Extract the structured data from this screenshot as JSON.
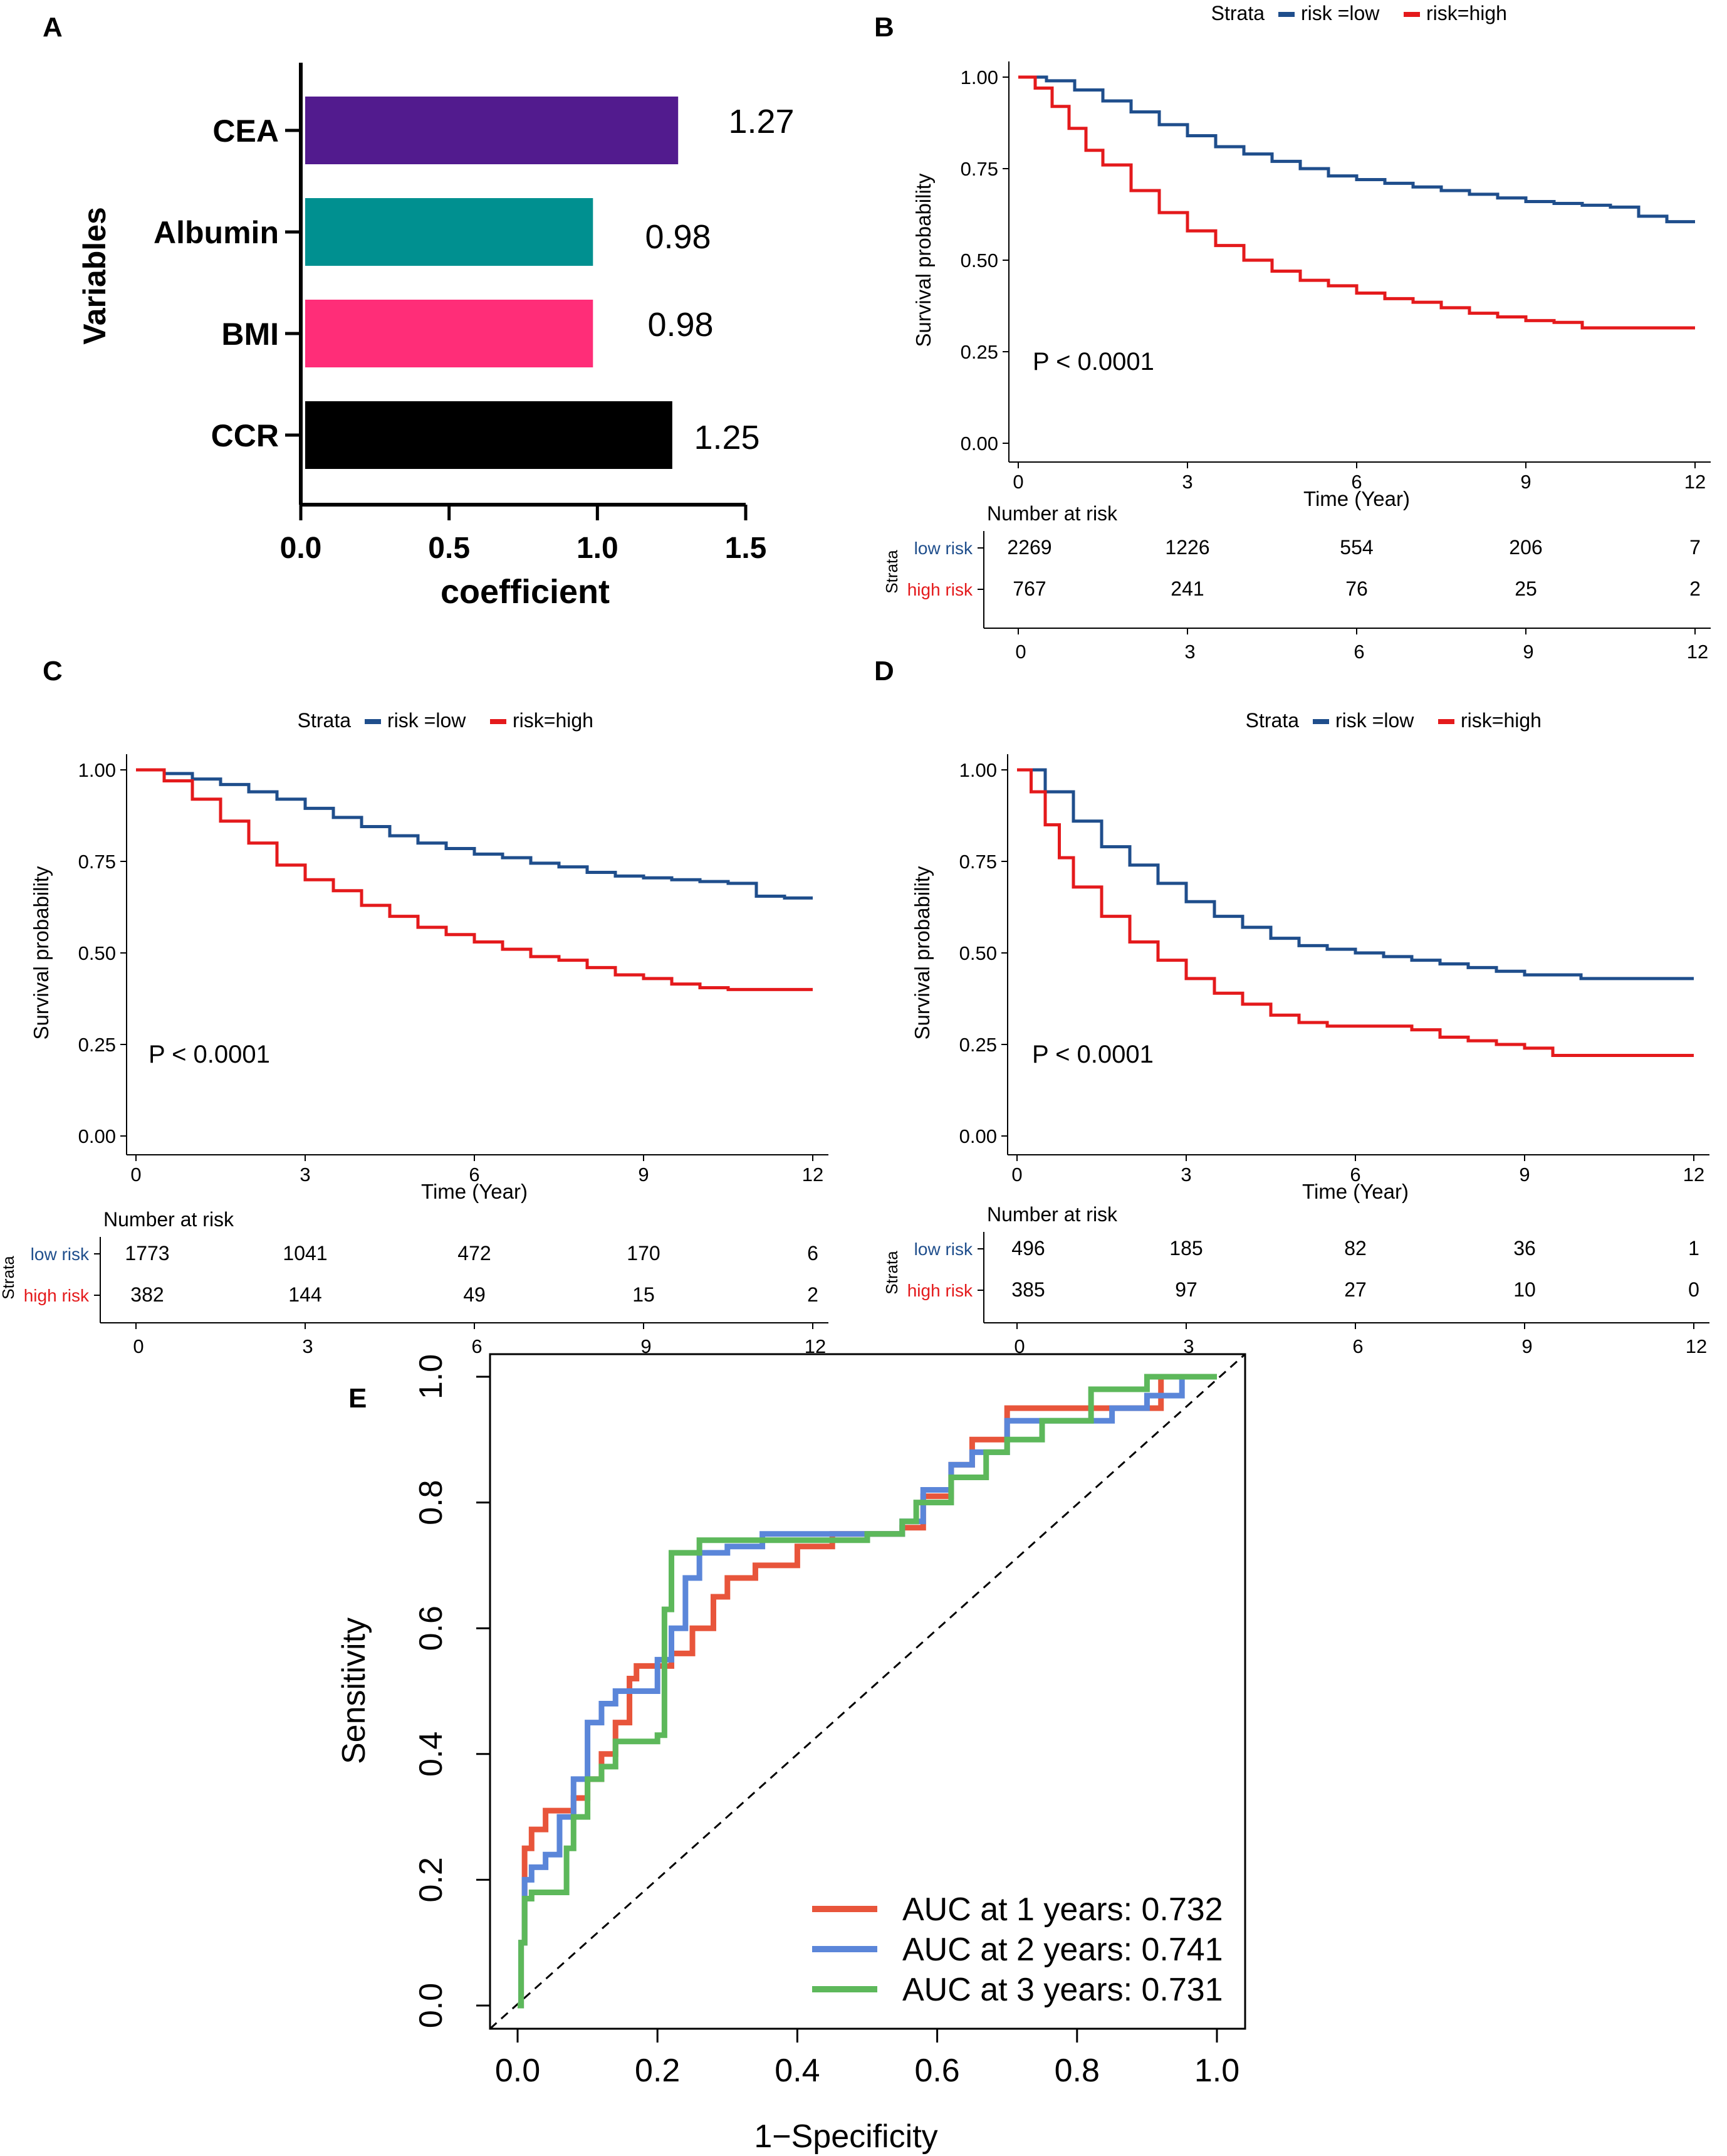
{
  "colors": {
    "low": "#1F4E8C",
    "high": "#E41A1C",
    "roc1": "#E8553B",
    "roc2": "#5B86D9",
    "roc3": "#5DB85B",
    "bar_cea": "#521B8E",
    "bar_albumin": "#009090",
    "bar_bmi": "#FF2D78",
    "bar_ccr": "#000000"
  },
  "chart_data": [
    {
      "panel": "A",
      "type": "bar",
      "orientation": "horizontal",
      "categories": [
        "CEA",
        "Albumin",
        "BMI",
        "CCR"
      ],
      "values": [
        1.27,
        0.98,
        0.98,
        1.25
      ],
      "value_labels": [
        "1.27",
        "0.98",
        "0.98",
        "1.25"
      ],
      "xlabel": "coefficient",
      "ylabel": "Variables",
      "xlim": [
        0,
        1.5
      ],
      "xticks": [
        "0.0",
        "0.5",
        "1.0",
        "1.5"
      ]
    },
    {
      "panel": "B",
      "type": "line",
      "legend_title": "Strata",
      "legend": [
        "risk =low",
        "risk=high"
      ],
      "xlabel": "Time (Year)",
      "ylabel": "Survival probability",
      "xlim": [
        0,
        12
      ],
      "ylim": [
        0,
        1
      ],
      "xticks": [
        "0",
        "3",
        "6",
        "9",
        "12"
      ],
      "yticks": [
        "0.00",
        "0.25",
        "0.50",
        "0.75",
        "1.00"
      ],
      "pvalue": "P < 0.0001",
      "series": [
        {
          "name": "risk =low",
          "x": [
            0,
            0.5,
            1,
            1.5,
            2,
            2.5,
            3,
            3.5,
            4,
            4.5,
            5,
            5.5,
            6,
            6.5,
            7,
            7.5,
            8,
            8.5,
            9,
            9.5,
            10,
            10.5,
            11,
            11.5,
            12
          ],
          "y": [
            1.0,
            0.99,
            0.965,
            0.935,
            0.905,
            0.87,
            0.84,
            0.81,
            0.79,
            0.77,
            0.75,
            0.73,
            0.72,
            0.71,
            0.7,
            0.69,
            0.68,
            0.67,
            0.66,
            0.655,
            0.65,
            0.645,
            0.62,
            0.605,
            0.605
          ]
        },
        {
          "name": "risk=high",
          "x": [
            0,
            0.3,
            0.6,
            0.9,
            1.2,
            1.5,
            2,
            2.5,
            3,
            3.5,
            4,
            4.5,
            5,
            5.5,
            6,
            6.5,
            7,
            7.5,
            8,
            8.5,
            9,
            9.5,
            10,
            10.5,
            11,
            11.5,
            12
          ],
          "y": [
            1.0,
            0.97,
            0.92,
            0.86,
            0.8,
            0.76,
            0.69,
            0.63,
            0.58,
            0.54,
            0.5,
            0.47,
            0.445,
            0.43,
            0.41,
            0.395,
            0.385,
            0.37,
            0.355,
            0.345,
            0.335,
            0.33,
            0.315,
            0.315,
            0.315,
            0.315,
            0.315
          ]
        }
      ],
      "risk_table": {
        "title": "Number at risk",
        "strata_label": "Strata",
        "rows": [
          {
            "label": "low risk",
            "counts": [
              "2269",
              "1226",
              "554",
              "206",
              "7"
            ]
          },
          {
            "label": "high risk",
            "counts": [
              "767",
              "241",
              "76",
              "25",
              "2"
            ]
          }
        ],
        "xticks": [
          "0",
          "3",
          "6",
          "9",
          "12"
        ]
      }
    },
    {
      "panel": "C",
      "type": "line",
      "legend_title": "Strata",
      "legend": [
        "risk =low",
        "risk=high"
      ],
      "xlabel": "Time (Year)",
      "ylabel": "Survival probability",
      "xlim": [
        0,
        12
      ],
      "ylim": [
        0,
        1
      ],
      "xticks": [
        "0",
        "3",
        "6",
        "9",
        "12"
      ],
      "yticks": [
        "0.00",
        "0.25",
        "0.50",
        "0.75",
        "1.00"
      ],
      "pvalue": "P < 0.0001",
      "series": [
        {
          "name": "risk =low",
          "x": [
            0,
            0.5,
            1,
            1.5,
            2,
            2.5,
            3,
            3.5,
            4,
            4.5,
            5,
            5.5,
            6,
            6.5,
            7,
            7.5,
            8,
            8.5,
            9,
            9.5,
            10,
            10.5,
            11,
            11.5,
            12
          ],
          "y": [
            1.0,
            0.99,
            0.975,
            0.96,
            0.94,
            0.92,
            0.895,
            0.87,
            0.845,
            0.82,
            0.8,
            0.785,
            0.77,
            0.76,
            0.745,
            0.735,
            0.72,
            0.71,
            0.705,
            0.7,
            0.695,
            0.69,
            0.655,
            0.65,
            0.65
          ]
        },
        {
          "name": "risk=high",
          "x": [
            0,
            0.5,
            1,
            1.5,
            2,
            2.5,
            3,
            3.5,
            4,
            4.5,
            5,
            5.5,
            6,
            6.5,
            7,
            7.5,
            8,
            8.5,
            9,
            9.5,
            10,
            10.5,
            11,
            11.5,
            12
          ],
          "y": [
            1.0,
            0.97,
            0.92,
            0.86,
            0.8,
            0.74,
            0.7,
            0.67,
            0.63,
            0.6,
            0.57,
            0.55,
            0.53,
            0.51,
            0.49,
            0.48,
            0.46,
            0.44,
            0.43,
            0.415,
            0.405,
            0.4,
            0.4,
            0.4,
            0.4
          ]
        }
      ],
      "risk_table": {
        "title": "Number at risk",
        "strata_label": "Strata",
        "rows": [
          {
            "label": "low risk",
            "counts": [
              "1773",
              "1041",
              "472",
              "170",
              "6"
            ]
          },
          {
            "label": "high risk",
            "counts": [
              "382",
              "144",
              "49",
              "15",
              "2"
            ]
          }
        ],
        "xticks": [
          "0",
          "3",
          "6",
          "9",
          "12"
        ]
      }
    },
    {
      "panel": "D",
      "type": "line",
      "legend_title": "Strata",
      "legend": [
        "risk =low",
        "risk=high"
      ],
      "xlabel": "Time (Year)",
      "ylabel": "Survival probability",
      "xlim": [
        0,
        12
      ],
      "ylim": [
        0,
        1
      ],
      "xticks": [
        "0",
        "3",
        "6",
        "9",
        "12"
      ],
      "yticks": [
        "0.00",
        "0.25",
        "0.50",
        "0.75",
        "1.00"
      ],
      "pvalue": "P < 0.0001",
      "series": [
        {
          "name": "risk =low",
          "x": [
            0,
            0.5,
            1,
            1.5,
            2,
            2.5,
            3,
            3.5,
            4,
            4.5,
            5,
            5.5,
            6,
            6.5,
            7,
            7.5,
            8,
            8.5,
            9,
            9.5,
            10,
            10.5,
            11,
            11.5,
            12
          ],
          "y": [
            1.0,
            0.94,
            0.86,
            0.79,
            0.74,
            0.69,
            0.64,
            0.6,
            0.57,
            0.54,
            0.52,
            0.51,
            0.5,
            0.49,
            0.48,
            0.47,
            0.46,
            0.45,
            0.44,
            0.44,
            0.43,
            0.43,
            0.43,
            0.43,
            0.43
          ]
        },
        {
          "name": "risk=high",
          "x": [
            0,
            0.25,
            0.5,
            0.75,
            1,
            1.5,
            2,
            2.5,
            3,
            3.5,
            4,
            4.5,
            5,
            5.5,
            6,
            6.5,
            7,
            7.5,
            8,
            8.5,
            9,
            9.5,
            10,
            10.5,
            11,
            11.5,
            12
          ],
          "y": [
            1.0,
            0.94,
            0.85,
            0.76,
            0.68,
            0.6,
            0.53,
            0.48,
            0.43,
            0.39,
            0.36,
            0.33,
            0.31,
            0.3,
            0.3,
            0.3,
            0.29,
            0.27,
            0.26,
            0.25,
            0.24,
            0.22,
            0.22,
            0.22,
            0.22,
            0.22,
            0.22
          ]
        }
      ],
      "risk_table": {
        "title": "Number at risk",
        "strata_label": "Strata",
        "rows": [
          {
            "label": "low risk",
            "counts": [
              "496",
              "185",
              "82",
              "36",
              "1"
            ]
          },
          {
            "label": "high risk",
            "counts": [
              "385",
              "97",
              "27",
              "10",
              "0"
            ]
          }
        ],
        "xticks": [
          "0",
          "3",
          "6",
          "9",
          "12"
        ]
      }
    },
    {
      "panel": "E",
      "type": "line",
      "subtype": "roc",
      "xlabel": "1−Specificity",
      "ylabel": "Sensitivity",
      "xlim": [
        0,
        1
      ],
      "ylim": [
        0,
        1
      ],
      "xticks": [
        "0.0",
        "0.2",
        "0.4",
        "0.6",
        "0.8",
        "1.0"
      ],
      "yticks": [
        "0.0",
        "0.2",
        "0.4",
        "0.6",
        "0.8",
        "1.0"
      ],
      "series": [
        {
          "name": "AUC at 1 years: 0.732",
          "x": [
            0,
            0.005,
            0.005,
            0.01,
            0.02,
            0.04,
            0.08,
            0.1,
            0.12,
            0.14,
            0.16,
            0.17,
            0.18,
            0.2,
            0.22,
            0.25,
            0.28,
            0.3,
            0.34,
            0.36,
            0.4,
            0.45,
            0.5,
            0.55,
            0.58,
            0.62,
            0.65,
            0.7,
            0.8,
            0.85,
            0.92,
            0.96,
            1.0
          ],
          "y": [
            0,
            0.08,
            0.1,
            0.25,
            0.28,
            0.31,
            0.33,
            0.36,
            0.4,
            0.45,
            0.52,
            0.54,
            0.54,
            0.54,
            0.56,
            0.6,
            0.65,
            0.68,
            0.7,
            0.7,
            0.73,
            0.75,
            0.75,
            0.76,
            0.81,
            0.86,
            0.9,
            0.95,
            0.95,
            0.95,
            1.0,
            1.0,
            1.0
          ]
        },
        {
          "name": "AUC at 2 years: 0.741",
          "x": [
            0,
            0.005,
            0.005,
            0.01,
            0.02,
            0.04,
            0.06,
            0.08,
            0.1,
            0.12,
            0.14,
            0.18,
            0.2,
            0.22,
            0.24,
            0.26,
            0.3,
            0.35,
            0.5,
            0.55,
            0.58,
            0.62,
            0.65,
            0.7,
            0.8,
            0.85,
            0.9,
            0.92,
            0.95,
            1.0
          ],
          "y": [
            0,
            0.05,
            0.1,
            0.2,
            0.22,
            0.24,
            0.3,
            0.36,
            0.45,
            0.48,
            0.5,
            0.5,
            0.55,
            0.6,
            0.68,
            0.72,
            0.73,
            0.75,
            0.75,
            0.77,
            0.82,
            0.86,
            0.88,
            0.93,
            0.93,
            0.95,
            0.97,
            0.97,
            1.0,
            1.0
          ]
        },
        {
          "name": "AUC at 3 years: 0.731",
          "x": [
            0,
            0.005,
            0.005,
            0.01,
            0.02,
            0.06,
            0.07,
            0.08,
            0.1,
            0.12,
            0.14,
            0.18,
            0.2,
            0.21,
            0.22,
            0.26,
            0.3,
            0.4,
            0.5,
            0.55,
            0.57,
            0.62,
            0.67,
            0.7,
            0.75,
            0.8,
            0.82,
            0.86,
            0.9,
            1.0
          ],
          "y": [
            0,
            0.05,
            0.1,
            0.17,
            0.18,
            0.18,
            0.25,
            0.3,
            0.36,
            0.38,
            0.42,
            0.42,
            0.43,
            0.63,
            0.72,
            0.74,
            0.74,
            0.74,
            0.75,
            0.77,
            0.8,
            0.84,
            0.88,
            0.9,
            0.93,
            0.93,
            0.98,
            0.98,
            1.0,
            1.0
          ]
        }
      ],
      "reference_line": "diagonal dashed"
    }
  ]
}
